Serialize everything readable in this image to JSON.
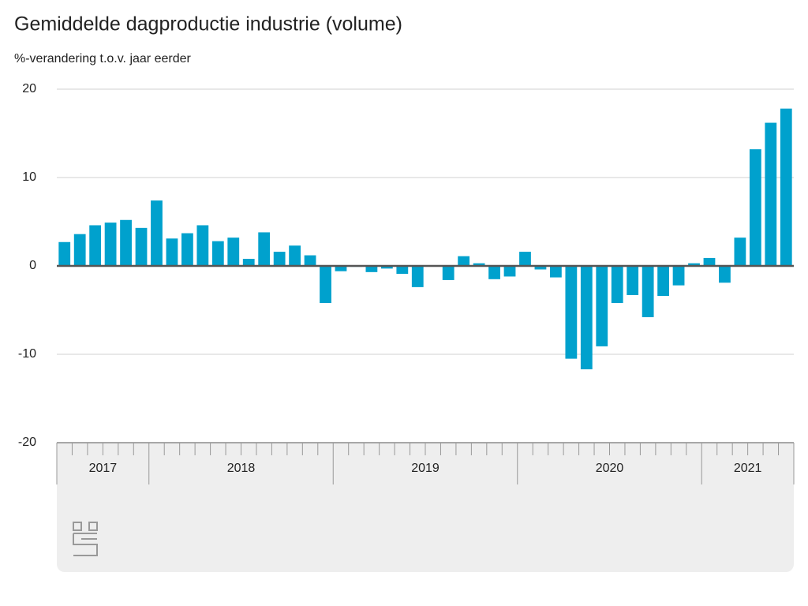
{
  "chart_data": {
    "type": "bar",
    "title": "Gemiddelde dagproductie industrie (volume)",
    "subtitle": "%-verandering t.o.v. jaar eerder",
    "categories": [
      "2017",
      "2017",
      "2017",
      "2017",
      "2017",
      "2017",
      "2018",
      "2018",
      "2018",
      "2018",
      "2018",
      "2018",
      "2018",
      "2018",
      "2018",
      "2018",
      "2018",
      "2018",
      "2019",
      "2019",
      "2019",
      "2019",
      "2019",
      "2019",
      "2019",
      "2019",
      "2019",
      "2019",
      "2019",
      "2019",
      "2020",
      "2020",
      "2020",
      "2020",
      "2020",
      "2020",
      "2020",
      "2020",
      "2020",
      "2020",
      "2020",
      "2020",
      "2021",
      "2021",
      "2021",
      "2021",
      "2021",
      "2021"
    ],
    "values": [
      2.7,
      3.6,
      4.6,
      4.9,
      5.2,
      4.3,
      7.4,
      3.1,
      3.7,
      4.6,
      2.8,
      3.2,
      0.8,
      3.8,
      1.6,
      2.3,
      1.2,
      -4.2,
      -0.6,
      -0.1,
      -0.7,
      -0.3,
      -0.9,
      -2.4,
      0,
      -1.6,
      1.1,
      0.3,
      -1.5,
      -1.2,
      1.6,
      -0.4,
      -1.3,
      -10.5,
      -11.7,
      -9.1,
      -4.2,
      -3.3,
      -5.8,
      -3.4,
      -2.2,
      0.3,
      0.9,
      -1.9,
      3.2,
      13.2,
      16.2,
      17.8
    ],
    "color": "#00a1cd",
    "ylim": [
      -20,
      20
    ],
    "yticks": [
      -20,
      -10,
      0,
      10,
      20
    ],
    "grid": true
  }
}
